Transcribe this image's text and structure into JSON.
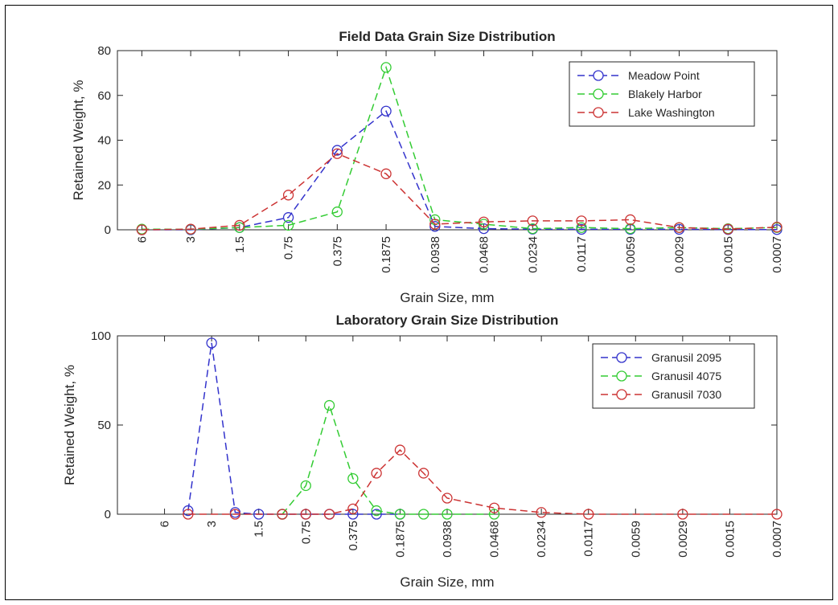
{
  "chart_data": [
    {
      "type": "line",
      "title": "Field Data Grain Size Distribution",
      "xlabel": "Grain Size, mm",
      "ylabel": "Retained Weight, %",
      "categories": [
        "6",
        "3",
        "1.5",
        "0.75",
        "0.375",
        "0.1875",
        "0.0938",
        "0.0468",
        "0.0234",
        "0.0117",
        "0.0059",
        "0.0029",
        "0.0015",
        "0.0007"
      ],
      "x_positions": [
        1,
        2,
        3,
        4,
        5,
        6,
        7,
        8,
        9,
        10,
        11,
        12,
        13,
        14
      ],
      "xlim": [
        0.5,
        14
      ],
      "ylim": [
        0,
        80
      ],
      "yticks": [
        0,
        20,
        40,
        60,
        80
      ],
      "legend_position": "top-right",
      "series": [
        {
          "name": "Meadow Point",
          "color": "#3333cc",
          "x": [
            1,
            2,
            3,
            4,
            5,
            6,
            7,
            8,
            9,
            10,
            11,
            12,
            13,
            14
          ],
          "values": [
            0,
            0,
            1,
            5.5,
            35.5,
            53,
            1.5,
            0.5,
            0.3,
            0.2,
            0.2,
            0.2,
            0.1,
            0.1
          ]
        },
        {
          "name": "Blakely Harbor",
          "color": "#33cc33",
          "x": [
            1,
            2,
            3,
            4,
            5,
            6,
            7,
            8,
            9,
            10,
            11,
            12,
            13,
            14
          ],
          "values": [
            0.3,
            0.2,
            1,
            2,
            8,
            72.5,
            4.5,
            2.5,
            0.5,
            1,
            0.5,
            1,
            0.5,
            1
          ]
        },
        {
          "name": "Lake Washington",
          "color": "#cc3333",
          "x": [
            1,
            2,
            3,
            4,
            5,
            6,
            7,
            8,
            9,
            10,
            11,
            12,
            13,
            14
          ],
          "values": [
            0,
            0.3,
            2,
            15.5,
            34,
            25,
            2.5,
            3.5,
            4,
            4,
            4.5,
            1,
            0.3,
            1.2
          ]
        }
      ]
    },
    {
      "type": "line",
      "title": "Laboratory Grain Size Distribution",
      "xlabel": "Grain Size, mm",
      "ylabel": "Retained Weight, %",
      "categories": [
        "6",
        "3",
        "1.5",
        "0.75",
        "0.375",
        "0.1875",
        "0.0938",
        "0.0468",
        "0.0234",
        "0.0117",
        "0.0059",
        "0.0029",
        "0.0015",
        "0.0007"
      ],
      "x_positions": [
        1,
        2,
        3,
        4,
        5,
        6,
        7,
        8,
        9,
        10,
        11,
        12,
        13,
        14
      ],
      "xlim": [
        0,
        14
      ],
      "ylim": [
        0,
        100
      ],
      "yticks": [
        0,
        50,
        100
      ],
      "legend_position": "top-right",
      "series": [
        {
          "name": "Granusil 2095",
          "color": "#3333cc",
          "x": [
            1.5,
            2,
            2.5,
            3,
            3.5,
            4,
            4.5,
            5,
            5.5,
            6
          ],
          "values": [
            2,
            96,
            1,
            0,
            0,
            0,
            0,
            0,
            0,
            0
          ]
        },
        {
          "name": "Granusil 4075",
          "color": "#33cc33",
          "x": [
            3.5,
            4,
            4.5,
            5,
            5.5,
            6,
            6.5,
            7,
            8
          ],
          "values": [
            0,
            16,
            61,
            20,
            2,
            0,
            0,
            0,
            0
          ]
        },
        {
          "name": "Granusil 7030",
          "color": "#cc3333",
          "x": [
            1.5,
            2.5,
            3.5,
            4,
            4.5,
            5,
            5.5,
            6,
            6.5,
            7,
            8,
            9,
            10,
            12,
            14
          ],
          "values": [
            0,
            0,
            0,
            0,
            0,
            3,
            23,
            36,
            23,
            9,
            3.5,
            1,
            0,
            0,
            0
          ]
        }
      ]
    }
  ]
}
